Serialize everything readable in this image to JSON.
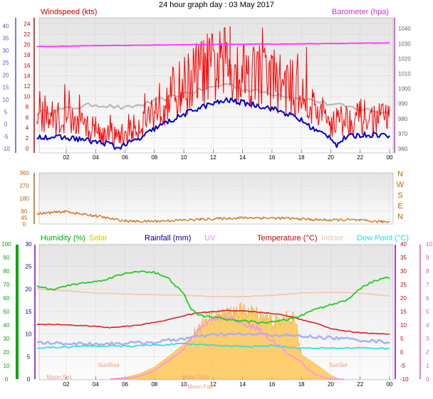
{
  "title": "24 hour graph day : 03 May 2017",
  "colors": {
    "grid": "#c8c8c8",
    "bg_top": "#e4e4e4",
    "bg_bottom": "#fcfcfc",
    "wind_gust": "#ff0000",
    "wind_avg": "#0000cc",
    "wind_bg": "#b8b8b8",
    "barometer": "#ff33ff",
    "direction": "#d87010",
    "humidity": "#22cc22",
    "solar": "#ffc040",
    "rainfall": "#000080",
    "uv": "#ff88ff",
    "temperature": "#dd2222",
    "indoor": "#f5c8a8",
    "dew_point": "#22dddd",
    "left_axis_red": "#cc0000",
    "left_axis_blue": "#5555cc",
    "left_axis_brown": "#bb6600",
    "left_axis_green": "#00aa00",
    "right_axis_magenta": "#cc33cc",
    "right_axis_purple": "#8800aa",
    "right_axis_red": "#cc0000",
    "right_axis_pink": "#ee5599"
  },
  "chart_data": [
    {
      "type": "line",
      "id": "wind-barometer",
      "xlabel": "",
      "x_ticks": [
        "02",
        "04",
        "06",
        "08",
        "10",
        "12",
        "14",
        "16",
        "18",
        "20",
        "22",
        "00"
      ],
      "left_label": "Windspeed (kts)",
      "right_label": "Barometer (hpa)",
      "y_wind_ticks": [
        0,
        2,
        4,
        6,
        8,
        10,
        12,
        14,
        16,
        18,
        20,
        22,
        24
      ],
      "y_wind_range": [
        -1,
        25
      ],
      "y_outer_ticks": [
        -10,
        -5,
        0,
        5,
        10,
        15,
        20,
        25,
        30,
        35,
        40
      ],
      "y_outer_range": [
        -12,
        43
      ],
      "y_baro_ticks": [
        960,
        970,
        980,
        990,
        1000,
        1010,
        1020,
        1030,
        1040
      ],
      "y_baro_range": [
        956.7,
        1046.7
      ],
      "series": [
        {
          "key": "barometer",
          "hours": [
            0,
            2,
            4,
            6,
            8,
            10,
            12,
            14,
            16,
            18,
            20,
            22,
            24
          ],
          "values": [
            1028,
            1028.3,
            1028.6,
            1028.8,
            1029,
            1029.2,
            1029.5,
            1029.6,
            1029.7,
            1029.8,
            1030,
            1030.3,
            1030.5
          ]
        },
        {
          "key": "wind_bg",
          "hours": [
            0,
            2,
            4,
            6,
            8,
            10,
            12,
            13,
            14,
            16,
            18,
            20,
            22,
            24
          ],
          "values": [
            6.8,
            7.6,
            8.5,
            7.7,
            9,
            10.5,
            11.8,
            12.5,
            11.4,
            10.6,
            9.7,
            8.5,
            7.6,
            6.8
          ]
        },
        {
          "key": "wind_gust",
          "hours": [
            0,
            1,
            2,
            3,
            4,
            5,
            6,
            7,
            8,
            9,
            10,
            11,
            12,
            13,
            14,
            15,
            16,
            17,
            18,
            19,
            20,
            21,
            22,
            23,
            24
          ],
          "values": [
            5.5,
            6,
            5.5,
            4.6,
            3.5,
            2.2,
            2.7,
            4.6,
            7.5,
            10,
            12,
            14.5,
            15.5,
            16,
            15,
            14.2,
            13.5,
            12,
            10.3,
            7.4,
            5.2,
            5.6,
            6,
            5.5,
            5.8
          ]
        },
        {
          "key": "wind_avg",
          "hours": [
            0,
            1,
            2,
            3,
            4,
            5,
            5.4,
            6,
            7,
            8,
            9,
            10,
            11,
            12,
            13,
            14,
            15,
            16,
            17,
            18,
            19,
            20,
            20.4,
            21,
            22,
            23,
            24
          ],
          "values": [
            2.3,
            2.2,
            2,
            1.8,
            1.2,
            0.9,
            0,
            0.8,
            1.8,
            3.8,
            5.2,
            6.5,
            7.8,
            8.6,
            9.3,
            8.8,
            8.3,
            7.7,
            6.7,
            5.4,
            3.4,
            2.2,
            0.7,
            2.1,
            2.6,
            2.7,
            2.5
          ]
        }
      ]
    },
    {
      "type": "line",
      "id": "wind-direction",
      "y_ticks": [
        0,
        45,
        90,
        180,
        270,
        360
      ],
      "y_range": [
        0,
        360
      ],
      "right_labels": [
        "N",
        "W",
        "S",
        "E",
        "N"
      ],
      "series": [
        {
          "key": "direction",
          "hours": [
            0,
            1,
            2,
            3,
            4,
            5,
            6,
            7,
            8,
            9,
            10,
            11,
            12,
            13,
            14,
            15,
            16,
            17,
            18,
            19,
            20,
            21,
            22,
            23,
            24
          ],
          "values": [
            72,
            80,
            88,
            70,
            58,
            38,
            22,
            18,
            20,
            24,
            28,
            32,
            36,
            40,
            44,
            44,
            42,
            40,
            36,
            30,
            28,
            30,
            26,
            18,
            16
          ]
        }
      ]
    },
    {
      "type": "line",
      "id": "temperature-humidity",
      "x_ticks": [
        "02",
        "04",
        "06",
        "08",
        "10",
        "12",
        "14",
        "16",
        "18",
        "20",
        "22",
        "00"
      ],
      "legend": [
        "Humidity (%)",
        "Solar",
        "Rainfall (mm)",
        "UV",
        "Temperature (°C)",
        "Indoor",
        "Dew Point (°C)"
      ],
      "y_humidity_ticks": [
        0,
        10,
        20,
        30,
        40,
        50,
        60,
        70,
        80,
        90,
        100
      ],
      "y_rain_ticks": [
        0,
        5,
        10,
        15,
        20,
        25,
        30
      ],
      "y_temp_ticks": [
        -10,
        -5,
        0,
        5,
        10,
        15,
        20,
        25,
        30,
        35,
        40
      ],
      "y_temp_range": [
        -10,
        40
      ],
      "y_uv_ticks": [
        0,
        1,
        2,
        3,
        4,
        5,
        6,
        7,
        8,
        9,
        10
      ],
      "annotations": [
        {
          "text": "Moon Set",
          "hour": 1.5,
          "temp": -10
        },
        {
          "text": "SunRise",
          "hour": 4.9,
          "temp": -5.5
        },
        {
          "text": "Moon Rise",
          "hour": 10.8,
          "temp": -10
        },
        {
          "text": "Moon Fall",
          "hour": 11.1,
          "temp": -13.5
        },
        {
          "text": "SunSet",
          "hour": 20.5,
          "temp": -5.5
        }
      ],
      "series": [
        {
          "key": "solar",
          "hours": [
            5,
            6,
            7,
            8,
            9,
            10,
            10.7,
            11,
            11.5,
            12,
            12.5,
            13,
            13.5,
            14,
            14.5,
            15,
            15.5,
            16,
            16.5,
            17,
            17.5,
            18,
            19,
            20,
            20.5
          ],
          "values": [
            -9.8,
            -9.4,
            -8,
            -5.5,
            -1.5,
            3,
            7,
            8.5,
            12,
            13,
            13.5,
            14.2,
            15,
            15.5,
            15,
            14.2,
            13.2,
            11.5,
            11,
            12.5,
            13,
            -1,
            -4.5,
            -8.6,
            -9.8
          ]
        },
        {
          "key": "humidity",
          "hours": [
            0,
            1,
            2,
            3,
            4,
            5,
            6,
            7,
            8,
            9,
            10,
            10.5,
            11,
            12,
            13,
            14,
            15,
            16,
            17,
            18,
            19,
            20,
            21,
            22,
            23,
            24
          ],
          "values": [
            69,
            66,
            69,
            71,
            72,
            75,
            78,
            80,
            79,
            74,
            63,
            52,
            47,
            46,
            44,
            43,
            42,
            42,
            44,
            47,
            52,
            55,
            58,
            67,
            73,
            75
          ]
        },
        {
          "key": "indoor",
          "hours": [
            0,
            2,
            4,
            6,
            8,
            10,
            12,
            14,
            16,
            18,
            20,
            22,
            24
          ],
          "values": [
            23.5,
            22.7,
            21.8,
            21.5,
            21.2,
            21,
            20.6,
            20.5,
            21,
            21.9,
            22.1,
            21.8,
            20.8
          ]
        },
        {
          "key": "temperature",
          "hours": [
            0,
            2,
            4,
            5,
            6,
            7,
            8,
            9,
            10,
            11,
            12,
            13,
            14,
            15,
            16,
            17,
            18,
            19,
            20,
            21,
            22,
            23,
            24
          ],
          "values": [
            10.3,
            10.1,
            9.5,
            9,
            9.5,
            10,
            11,
            12,
            13.5,
            14.5,
            15,
            15.4,
            15.2,
            14.8,
            14.3,
            13.5,
            12,
            10.7,
            8.7,
            7.8,
            7.1,
            6.9,
            6.6
          ]
        },
        {
          "key": "uv",
          "hours": [
            5,
            6,
            7,
            8,
            9,
            10,
            11,
            12,
            13,
            14,
            15,
            16,
            17,
            18,
            18.3,
            19,
            20,
            21
          ],
          "values": [
            -10,
            -9.8,
            -9,
            -6.8,
            -3,
            1,
            8,
            12.3,
            13,
            10.5,
            9,
            4.5,
            -0.5,
            -3.5,
            -5.8,
            -8.5,
            -10,
            -10
          ]
        },
        {
          "key": "rain_dots",
          "hours": [
            0,
            2,
            4,
            6,
            8,
            10,
            12,
            14,
            16,
            18,
            20,
            22,
            24
          ],
          "values": [
            3.5,
            3.2,
            3,
            3.3,
            3.6,
            5,
            6.4,
            6.6,
            6.4,
            5.8,
            5.3,
            4.5,
            3.6
          ]
        },
        {
          "key": "dew_point",
          "hours": [
            0,
            2,
            4,
            6,
            8,
            10,
            12,
            14,
            16,
            18,
            20,
            22,
            24
          ],
          "values": [
            1.5,
            1.9,
            2.3,
            2.1,
            2.6,
            3,
            2.6,
            2,
            2.4,
            1.4,
            1.4,
            1.6,
            1.2
          ]
        }
      ]
    }
  ]
}
